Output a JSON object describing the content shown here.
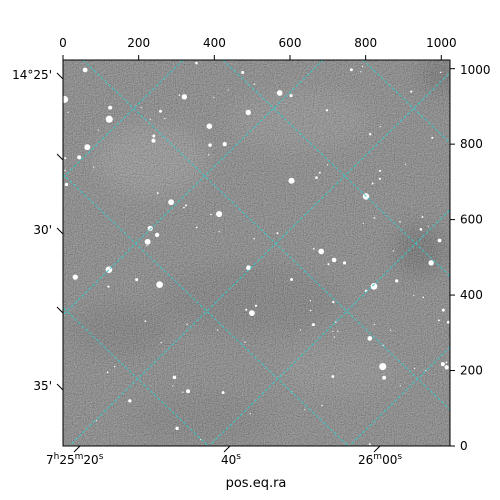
{
  "chart_data": {
    "type": "heatmap",
    "title": "",
    "xlabel": "pos.eq.ra",
    "ylabel": "",
    "colormap": "gray",
    "grid": true,
    "grid_color": "#39c6c6",
    "pixel_axes": {
      "xlim": [
        0,
        1023
      ],
      "ylim": [
        0,
        1023
      ],
      "top_ticks": [
        0,
        200,
        400,
        600,
        800,
        1000
      ],
      "right_ticks": [
        0,
        200,
        400,
        600,
        800,
        1000
      ]
    },
    "world_axes": {
      "ra_ticks": [
        {
          "h": "7",
          "m": "25",
          "s": "20",
          "full": true
        },
        {
          "s": "40"
        },
        {
          "h": "",
          "m": "26",
          "s": "00",
          "full": true
        }
      ],
      "dec_ticks": [
        {
          "label": "14°25'"
        },
        {
          "label": "30'"
        },
        {
          "label": "35'"
        }
      ]
    }
  }
}
